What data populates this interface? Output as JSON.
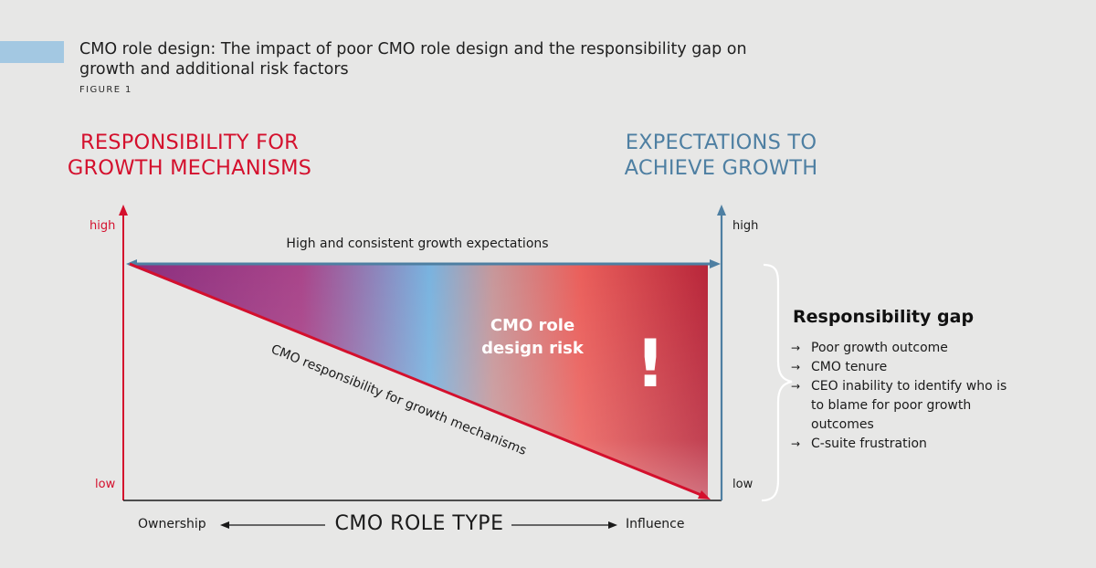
{
  "header": {
    "title": "CMO role design: The impact of poor CMO role design and the responsibility gap on growth and additional risk factors",
    "figure_label": "FIGURE 1"
  },
  "left_axis": {
    "heading": "RESPONSIBILITY FOR GROWTH MECHANISMS",
    "high_label": "high",
    "low_label": "low",
    "color": "#d4102d"
  },
  "right_axis": {
    "heading": "EXPECTATIONS TO ACHIEVE GROWTH",
    "high_label": "high",
    "low_label": "low",
    "color": "#4e7fa2"
  },
  "expectations_line_label": "High and consistent growth expectations",
  "responsibility_line_label": "CMO responsibility for growth mechanisms",
  "risk_area": {
    "label_line1": "CMO role",
    "label_line2": "design risk",
    "exclamation": "!"
  },
  "responsibility_gap": {
    "title": "Responsibility gap",
    "items": [
      "Poor growth outcome",
      "CMO tenure",
      "CEO inability to identify who is to blame for poor growth outcomes",
      "C-suite frustration"
    ]
  },
  "x_axis": {
    "title": "CMO ROLE TYPE",
    "left_label": "Ownership",
    "right_label": "Influence"
  }
}
